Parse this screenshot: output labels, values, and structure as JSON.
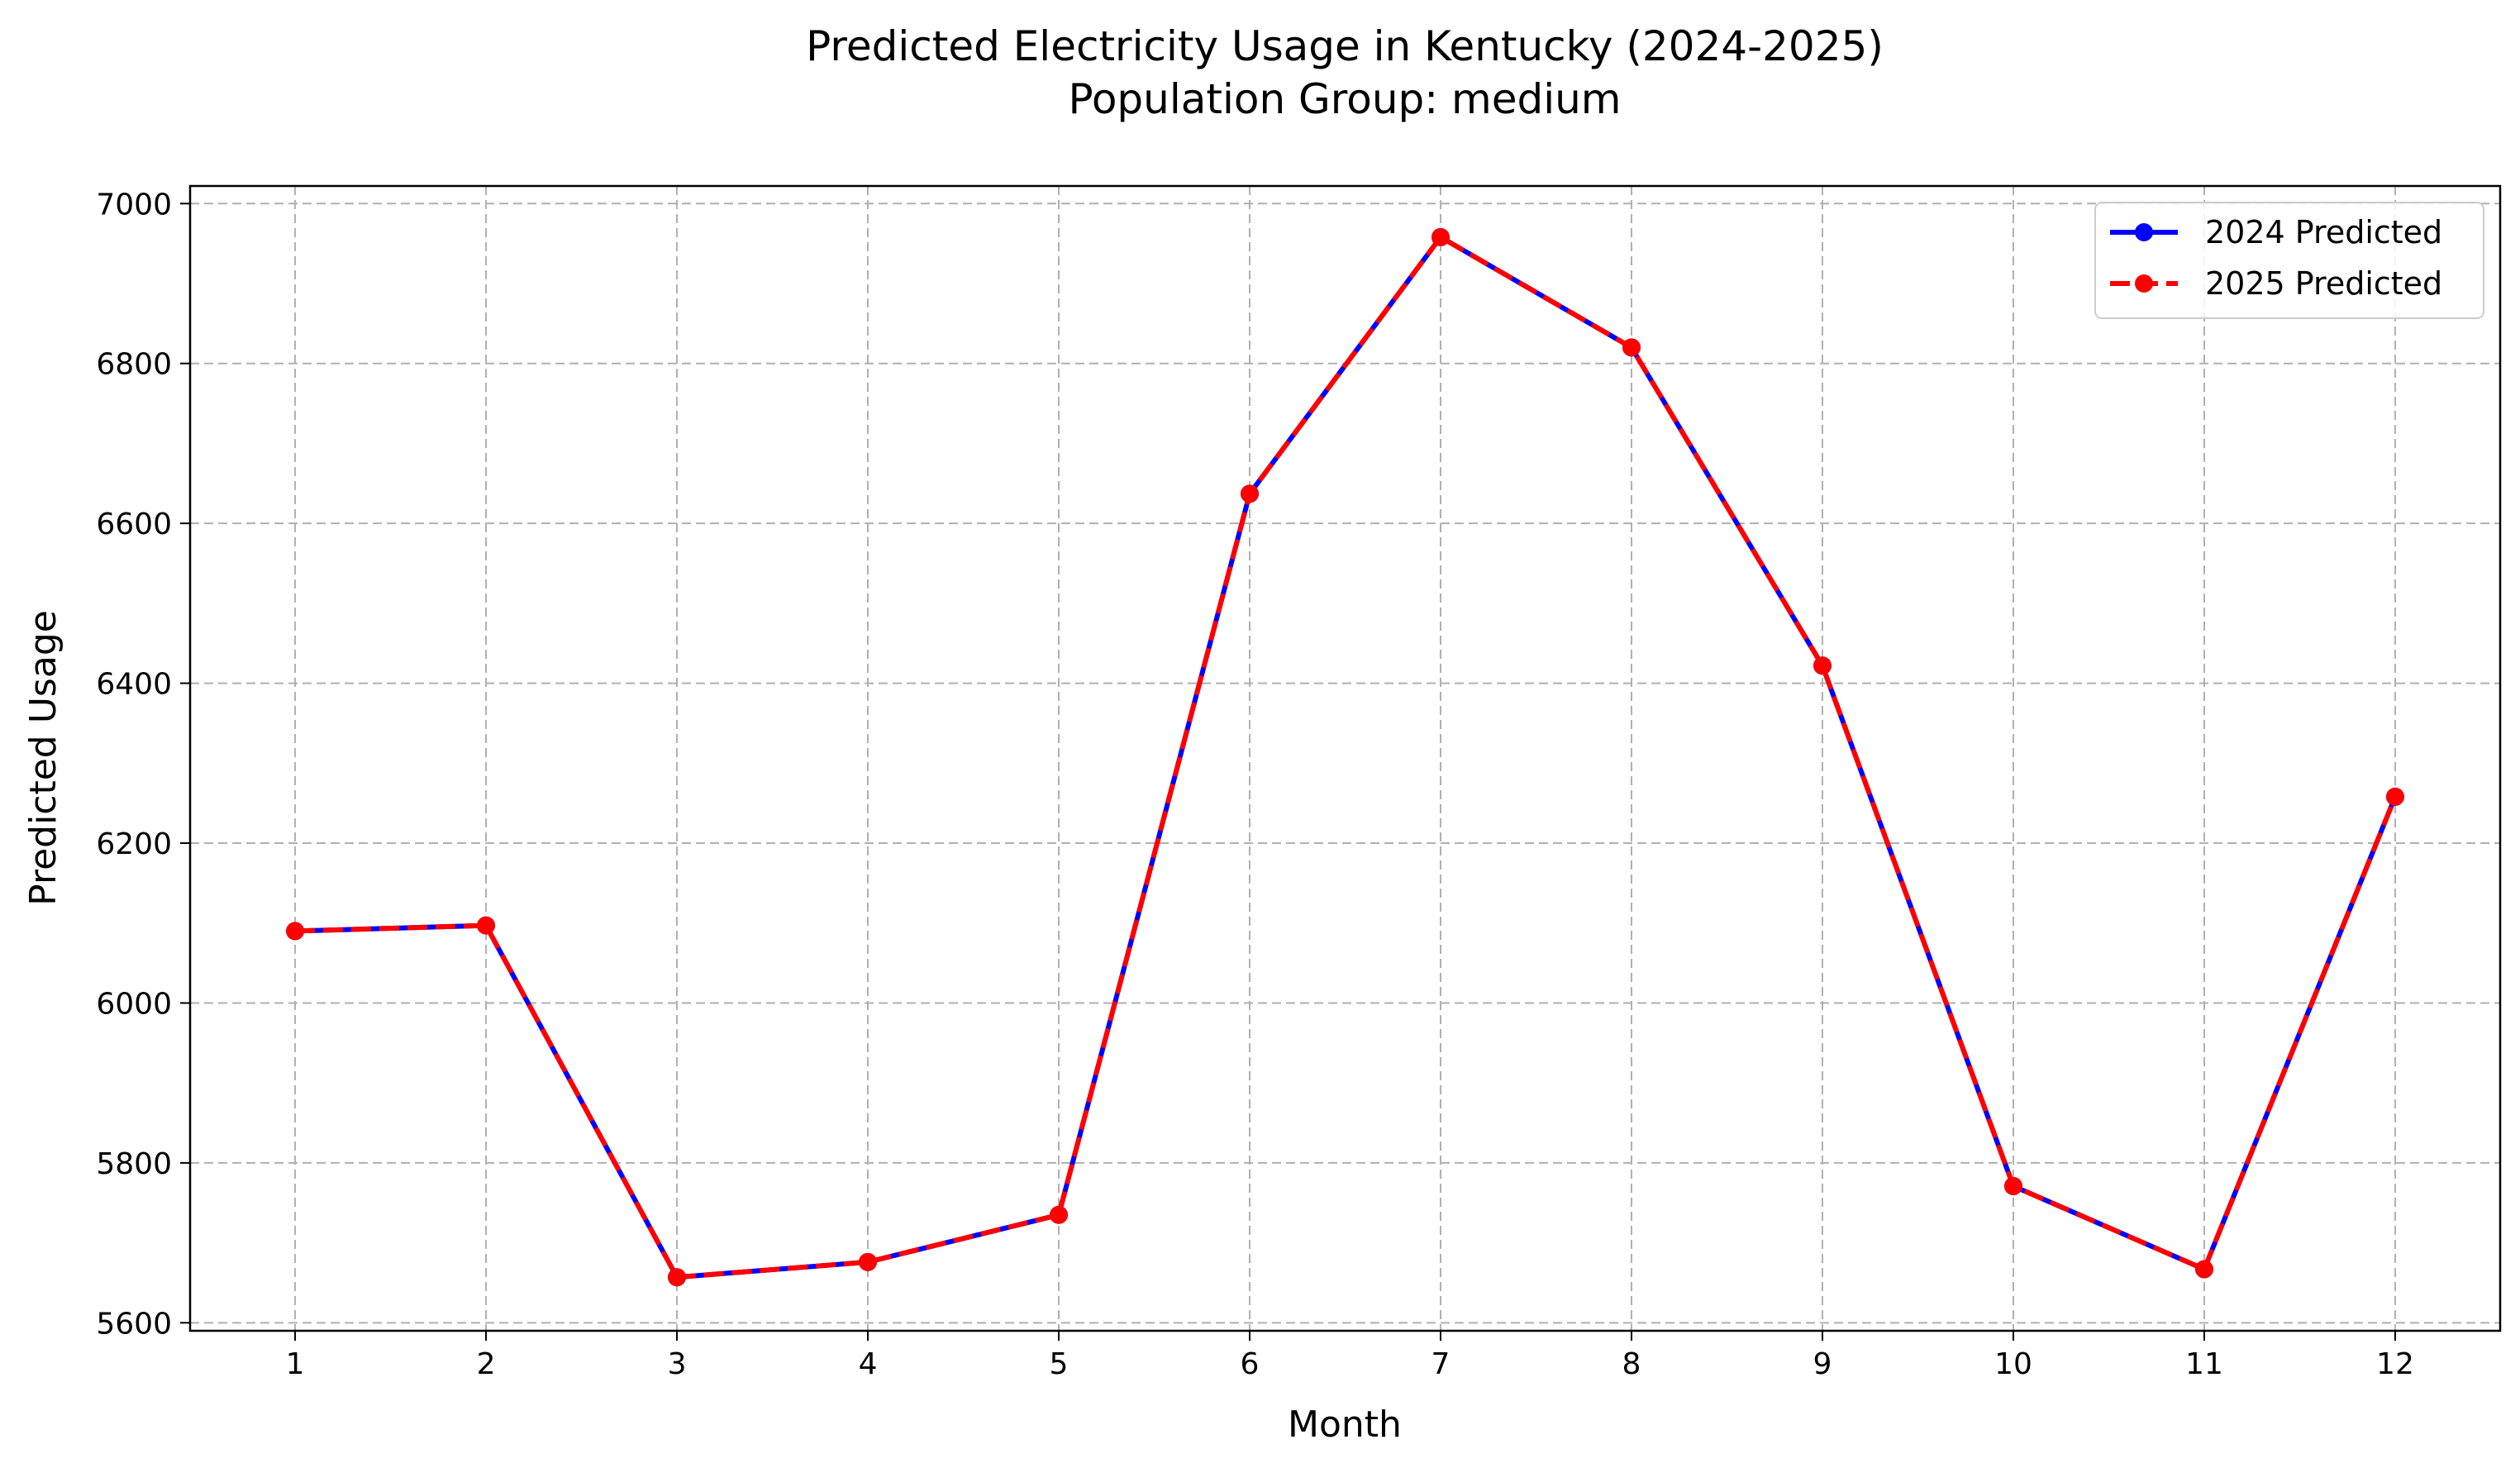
{
  "chart_data": {
    "type": "line",
    "title": "Predicted Electricity Usage in Kentucky (2024-2025)",
    "subtitle": "Population Group: medium",
    "xlabel": "Month",
    "ylabel": "Predicted Usage",
    "x": [
      1,
      2,
      3,
      4,
      5,
      6,
      7,
      8,
      9,
      10,
      11,
      12
    ],
    "x_tick_labels": [
      "1",
      "2",
      "3",
      "4",
      "5",
      "6",
      "7",
      "8",
      "9",
      "10",
      "11",
      "12"
    ],
    "xlim": [
      0.45,
      12.55
    ],
    "ylim": [
      5590,
      7022
    ],
    "y_ticks": [
      5600,
      5800,
      6000,
      6200,
      6400,
      6600,
      6800,
      7000
    ],
    "y_tick_labels": [
      "5600",
      "5800",
      "6000",
      "6200",
      "6400",
      "6600",
      "6800",
      "7000"
    ],
    "grid": true,
    "legend_position": "top-right",
    "series": [
      {
        "name": "2024 Predicted",
        "color": "#0000ff",
        "line_style": "solid",
        "marker": "circle",
        "values": [
          6090,
          6097,
          5657,
          5676,
          5735,
          6637,
          6958,
          6820,
          6422,
          5771,
          5667,
          6258
        ]
      },
      {
        "name": "2025 Predicted",
        "color": "#ff0000",
        "line_style": "dashed",
        "marker": "circle",
        "values": [
          6090,
          6097,
          5657,
          5676,
          5735,
          6637,
          6958,
          6820,
          6422,
          5771,
          5667,
          6258
        ]
      }
    ]
  }
}
